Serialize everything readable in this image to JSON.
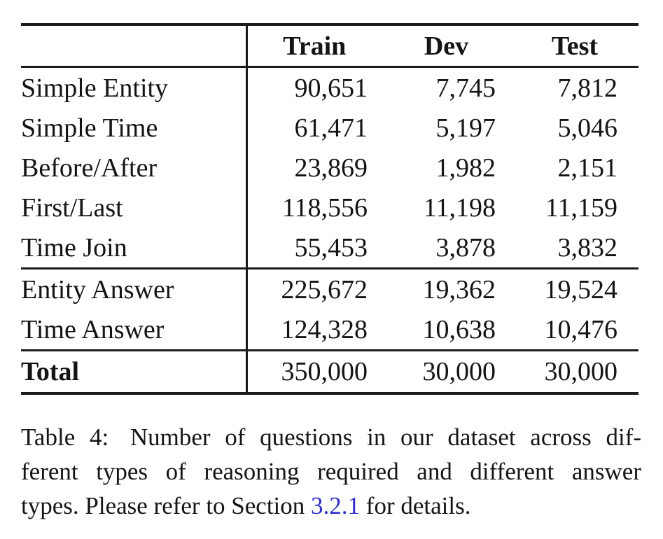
{
  "table": {
    "columns": [
      {
        "label": "Train"
      },
      {
        "label": "Dev"
      },
      {
        "label": "Test"
      }
    ],
    "rows": [
      {
        "label": "Simple Entity",
        "train": "90,651",
        "dev": "7,745",
        "test": "7,812"
      },
      {
        "label": "Simple Time",
        "train": "61,471",
        "dev": "5,197",
        "test": "5,046"
      },
      {
        "label": "Before/After",
        "train": "23,869",
        "dev": "1,982",
        "test": "2,151"
      },
      {
        "label": "First/Last",
        "train": "118,556",
        "dev": "11,198",
        "test": "11,159"
      },
      {
        "label": "Time Join",
        "train": "55,453",
        "dev": "3,878",
        "test": "3,832"
      },
      {
        "label": "Entity Answer",
        "train": "225,672",
        "dev": "19,362",
        "test": "19,524"
      },
      {
        "label": "Time Answer",
        "train": "124,328",
        "dev": "10,638",
        "test": "10,476"
      },
      {
        "label": "Total",
        "train": "350,000",
        "dev": "30,000",
        "test": "30,000"
      }
    ]
  },
  "caption": {
    "tag": "Table 4:",
    "line1_rest": "Number of questions in our dataset across dif-",
    "line2": "ferent types of reasoning required and different answer",
    "line3_prefix": "types. Please refer to Section ",
    "link": "3.2.1",
    "line3_suffix": " for details."
  },
  "colors": {
    "link_blue": "#2f2fc8",
    "rule": "#1b1b1b",
    "text": "#141414",
    "background": "#ffffff"
  }
}
